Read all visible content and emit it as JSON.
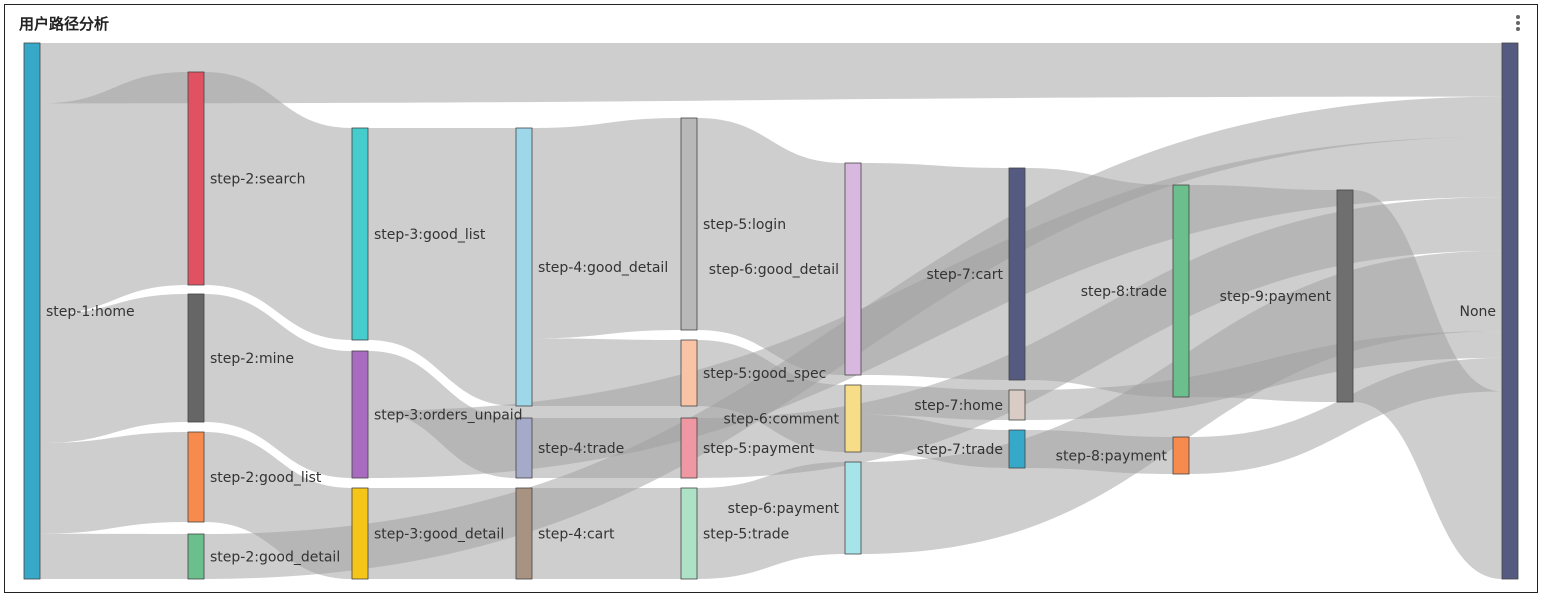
{
  "panel": {
    "title": "用户路径分析",
    "menu_icon": "vertical-ellipsis-icon"
  },
  "chart_data": {
    "type": "sankey",
    "nodes": [
      {
        "id": "home1",
        "step": 1,
        "label": "step-1:home",
        "color": "#37a8c8"
      },
      {
        "id": "search2",
        "step": 2,
        "label": "step-2:search",
        "color": "#e05262"
      },
      {
        "id": "mine2",
        "step": 2,
        "label": "step-2:mine",
        "color": "#666666"
      },
      {
        "id": "goodlist2",
        "step": 2,
        "label": "step-2:good_list",
        "color": "#f68b4d"
      },
      {
        "id": "gooddetail2",
        "step": 2,
        "label": "step-2:good_detail",
        "color": "#6bbf8c"
      },
      {
        "id": "goodlist3",
        "step": 3,
        "label": "step-3:good_list",
        "color": "#45cccc"
      },
      {
        "id": "ordersunpaid3",
        "step": 3,
        "label": "step-3:orders_unpaid",
        "color": "#a96bbf"
      },
      {
        "id": "gooddetail3",
        "step": 3,
        "label": "step-3:good_detail",
        "color": "#f5c518"
      },
      {
        "id": "gooddetail4",
        "step": 4,
        "label": "step-4:good_detail",
        "color": "#9fd7ea"
      },
      {
        "id": "trade4",
        "step": 4,
        "label": "step-4:trade",
        "color": "#a5aac8"
      },
      {
        "id": "cart4",
        "step": 4,
        "label": "step-4:cart",
        "color": "#a89382"
      },
      {
        "id": "login5",
        "step": 5,
        "label": "step-5:login",
        "color": "#b8b8b8"
      },
      {
        "id": "goodspec5",
        "step": 5,
        "label": "step-5:good_spec",
        "color": "#f9c3a6"
      },
      {
        "id": "payment5",
        "step": 5,
        "label": "step-5:payment",
        "color": "#ef98a4"
      },
      {
        "id": "trade5",
        "step": 5,
        "label": "step-5:trade",
        "color": "#aee2c6"
      },
      {
        "id": "gooddetail6",
        "step": 6,
        "label": "step-6:good_detail",
        "color": "#d9b8e0"
      },
      {
        "id": "comment6",
        "step": 6,
        "label": "step-6:comment",
        "color": "#f8dd88"
      },
      {
        "id": "payment6",
        "step": 6,
        "label": "step-6:payment",
        "color": "#a5e4e8"
      },
      {
        "id": "cart7",
        "step": 7,
        "label": "step-7:cart",
        "color": "#555a80"
      },
      {
        "id": "home7",
        "step": 7,
        "label": "step-7:home",
        "color": "#d8ccc4"
      },
      {
        "id": "trade7",
        "step": 7,
        "label": "step-7:trade",
        "color": "#36a8c8"
      },
      {
        "id": "trade8",
        "step": 8,
        "label": "step-8:trade",
        "color": "#6bbf8c"
      },
      {
        "id": "payment8",
        "step": 8,
        "label": "step-8:payment",
        "color": "#f68b4d"
      },
      {
        "id": "payment9",
        "step": 9,
        "label": "step-9:payment",
        "color": "#6f6f6f"
      },
      {
        "id": "none",
        "step": 10,
        "label": "None",
        "color": "#555a80"
      }
    ],
    "links": [
      {
        "source": "home1",
        "target": "none",
        "value": 4
      },
      {
        "source": "home1",
        "target": "search2",
        "value": 14
      },
      {
        "source": "home1",
        "target": "mine2",
        "value": 8.5
      },
      {
        "source": "home1",
        "target": "goodlist2",
        "value": 6
      },
      {
        "source": "home1",
        "target": "gooddetail2",
        "value": 3
      },
      {
        "source": "search2",
        "target": "goodlist3",
        "value": 14
      },
      {
        "source": "mine2",
        "target": "ordersunpaid3",
        "value": 8.5
      },
      {
        "source": "goodlist2",
        "target": "gooddetail3",
        "value": 6
      },
      {
        "source": "gooddetail2",
        "target": "none",
        "value": 3
      },
      {
        "source": "goodlist3",
        "target": "gooddetail4",
        "value": 14
      },
      {
        "source": "ordersunpaid3",
        "target": "trade4",
        "value": 4
      },
      {
        "source": "ordersunpaid3",
        "target": "none",
        "value": 4.5
      },
      {
        "source": "gooddetail3",
        "target": "cart4",
        "value": 6
      },
      {
        "source": "gooddetail4",
        "target": "login5",
        "value": 14
      },
      {
        "source": "gooddetail4",
        "target": "goodspec5",
        "value": 4.5
      },
      {
        "source": "trade4",
        "target": "payment5",
        "value": 4
      },
      {
        "source": "cart4",
        "target": "trade5",
        "value": 6
      },
      {
        "source": "login5",
        "target": "gooddetail6",
        "value": 14
      },
      {
        "source": "goodspec5",
        "target": "comment6",
        "value": 4.5
      },
      {
        "source": "payment5",
        "target": "none",
        "value": 4
      },
      {
        "source": "trade5",
        "target": "payment6",
        "value": 6
      },
      {
        "source": "gooddetail6",
        "target": "cart7",
        "value": 14
      },
      {
        "source": "comment6",
        "target": "home7",
        "value": 2
      },
      {
        "source": "comment6",
        "target": "trade7",
        "value": 2.5
      },
      {
        "source": "payment6",
        "target": "none",
        "value": 6
      },
      {
        "source": "cart7",
        "target": "trade8",
        "value": 14
      },
      {
        "source": "home7",
        "target": "none",
        "value": 2
      },
      {
        "source": "trade7",
        "target": "payment8",
        "value": 2.5
      },
      {
        "source": "trade8",
        "target": "payment9",
        "value": 14
      },
      {
        "source": "payment8",
        "target": "none",
        "value": 2.5
      },
      {
        "source": "payment9",
        "target": "none",
        "value": 14
      }
    ]
  }
}
